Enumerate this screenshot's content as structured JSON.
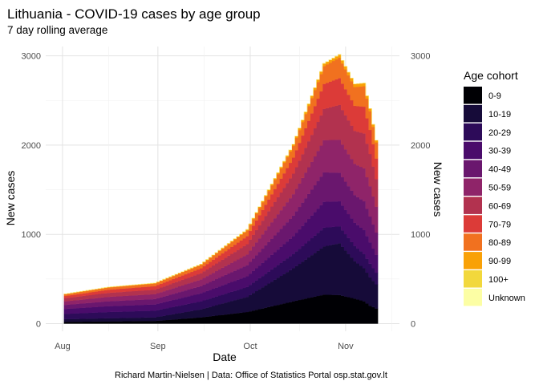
{
  "chart_data": {
    "type": "area",
    "stacked": true,
    "title": "Lithuania - COVID-19 cases by age group",
    "subtitle": "7 day rolling average",
    "xlabel": "Date",
    "ylabel": "New cases",
    "ylabel_secondary": "New cases",
    "caption": "Richard Martin-Nielsen | Data: Office of Statistics Portal osp.stat.gov.lt",
    "ylim": [
      0,
      3000
    ],
    "y_ticks": [
      0,
      1000,
      2000,
      3000
    ],
    "x_ticks": [
      "Aug",
      "Sep",
      "Oct",
      "Nov"
    ],
    "x_tick_days": [
      0,
      31,
      61,
      92
    ],
    "x_start": "2021-08-01",
    "x_end": "2021-11-11",
    "grid": true,
    "legend": {
      "title": "Age cohort",
      "position": "right"
    },
    "anchor_days": [
      1,
      15,
      30,
      45,
      60,
      75,
      85,
      90,
      95,
      98,
      100,
      102
    ],
    "series": [
      {
        "name": "0-9",
        "color": "#000004",
        "values": [
          20,
          25,
          30,
          70,
          130,
          250,
          325,
          320,
          280,
          250,
          200,
          170
        ]
      },
      {
        "name": "10-19",
        "color": "#160b39",
        "values": [
          30,
          35,
          40,
          90,
          170,
          370,
          540,
          580,
          420,
          370,
          320,
          270
        ]
      },
      {
        "name": "20-29",
        "color": "#2d0b59",
        "values": [
          60,
          70,
          75,
          90,
          110,
          160,
          210,
          190,
          170,
          160,
          150,
          130
        ]
      },
      {
        "name": "30-39",
        "color": "#4a0c6b",
        "values": [
          55,
          65,
          70,
          90,
          120,
          200,
          290,
          280,
          260,
          270,
          240,
          200
        ]
      },
      {
        "name": "40-49",
        "color": "#6a176e",
        "values": [
          45,
          55,
          60,
          80,
          125,
          230,
          330,
          320,
          310,
          320,
          290,
          250
        ]
      },
      {
        "name": "50-59",
        "color": "#8f2469",
        "values": [
          40,
          50,
          55,
          75,
          120,
          240,
          360,
          370,
          350,
          370,
          340,
          290
        ]
      },
      {
        "name": "60-69",
        "color": "#b2324f",
        "values": [
          35,
          45,
          50,
          70,
          115,
          230,
          350,
          390,
          370,
          390,
          360,
          310
        ]
      },
      {
        "name": "70-79",
        "color": "#dc3b38",
        "values": [
          25,
          35,
          40,
          55,
          90,
          180,
          280,
          300,
          280,
          300,
          270,
          230
        ]
      },
      {
        "name": "80-89",
        "color": "#f1711f",
        "values": [
          20,
          25,
          30,
          40,
          65,
          130,
          200,
          230,
          210,
          230,
          210,
          180
        ]
      },
      {
        "name": "90-99",
        "color": "#f9a107",
        "values": [
          4,
          5,
          5,
          7,
          10,
          20,
          30,
          35,
          35,
          35,
          30,
          25
        ]
      },
      {
        "name": "100+",
        "color": "#f2d83c",
        "values": [
          0,
          0,
          0,
          0,
          0,
          0,
          0,
          0,
          0,
          0,
          0,
          0
        ]
      },
      {
        "name": "Unknown",
        "color": "#fcfea4",
        "values": [
          0,
          0,
          0,
          0,
          0,
          0,
          0,
          0,
          0,
          0,
          0,
          0
        ]
      }
    ]
  }
}
